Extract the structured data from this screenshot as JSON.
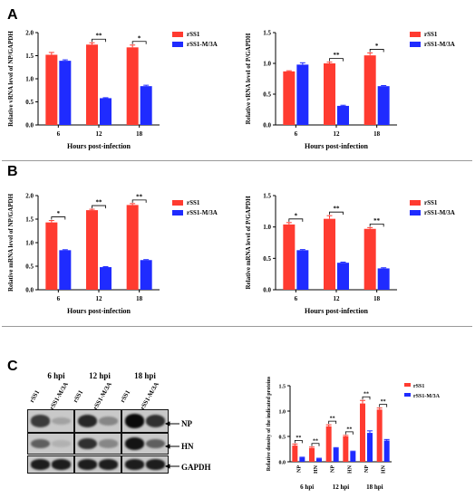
{
  "panels": {
    "A": "A",
    "B": "B",
    "C": "C"
  },
  "colors": {
    "rSS1": "#ff3b30",
    "rSS1-M/3A": "#1f2bff"
  },
  "chart_data": [
    {
      "id": "A-left",
      "type": "bar",
      "categories": [
        "6",
        "12",
        "18"
      ],
      "series": [
        {
          "name": "rSS1",
          "values": [
            1.52,
            1.74,
            1.68
          ],
          "errors": [
            0.05,
            0.04,
            0.05
          ]
        },
        {
          "name": "rSS1-M/3A",
          "values": [
            1.39,
            0.58,
            0.84
          ],
          "errors": [
            0.02,
            0.01,
            0.02
          ]
        }
      ],
      "sig": [
        null,
        "**",
        "*"
      ],
      "xlabel": "Hours post-infection",
      "ylabel": "Relative vRNA level of NP/GAPDH",
      "ylim": [
        0,
        2.0
      ],
      "yticks": [
        "0.0",
        "0.5",
        "1.0",
        "1.5",
        "2.0"
      ],
      "legend": "top-right"
    },
    {
      "id": "A-right",
      "type": "bar",
      "categories": [
        "6",
        "12",
        "18"
      ],
      "series": [
        {
          "name": "rSS1",
          "values": [
            0.87,
            1.0,
            1.13
          ],
          "errors": [
            0.01,
            0.02,
            0.04
          ]
        },
        {
          "name": "rSS1-M/3A",
          "values": [
            0.98,
            0.31,
            0.63
          ],
          "errors": [
            0.03,
            0.01,
            0.01
          ]
        }
      ],
      "sig": [
        null,
        "**",
        "*"
      ],
      "xlabel": "Hours post-infection",
      "ylabel": "Relative vRNA level of P/GAPDH",
      "ylim": [
        0,
        1.5
      ],
      "yticks": [
        "0.0",
        "0.5",
        "1.0",
        "1.5"
      ],
      "legend": "top-right"
    },
    {
      "id": "B-left",
      "type": "bar",
      "categories": [
        "6",
        "12",
        "18"
      ],
      "series": [
        {
          "name": "rSS1",
          "values": [
            1.43,
            1.69,
            1.8
          ],
          "errors": [
            0.04,
            0.02,
            0.03
          ]
        },
        {
          "name": "rSS1-M/3A",
          "values": [
            0.84,
            0.48,
            0.63
          ],
          "errors": [
            0.01,
            0.01,
            0.01
          ]
        }
      ],
      "sig": [
        "*",
        "**",
        "**"
      ],
      "xlabel": "Hours post-infection",
      "ylabel": "Relative mRNA level of NP/GAPDH",
      "ylim": [
        0,
        2.0
      ],
      "yticks": [
        "0.0",
        "0.5",
        "1.0",
        "1.5",
        "2.0"
      ],
      "legend": "top-right"
    },
    {
      "id": "B-right",
      "type": "bar",
      "categories": [
        "6",
        "12",
        "18"
      ],
      "series": [
        {
          "name": "rSS1",
          "values": [
            1.04,
            1.13,
            0.97
          ],
          "errors": [
            0.03,
            0.05,
            0.02
          ]
        },
        {
          "name": "rSS1-M/3A",
          "values": [
            0.63,
            0.43,
            0.34
          ],
          "errors": [
            0.01,
            0.01,
            0.01
          ]
        }
      ],
      "sig": [
        "*",
        "**",
        "**"
      ],
      "xlabel": "Hours post-infection",
      "ylabel": "Relative mRNA level of P/GAPDH",
      "ylim": [
        0,
        1.5
      ],
      "yticks": [
        "0.0",
        "0.5",
        "1.0",
        "1.5"
      ],
      "legend": "top-right"
    },
    {
      "id": "C-density",
      "type": "bar",
      "groups": [
        "6 hpi",
        "12 hpi",
        "18 hpi"
      ],
      "categories": [
        "NP",
        "HN",
        "NP",
        "HN",
        "NP",
        "HN"
      ],
      "series": [
        {
          "name": "rSS1",
          "values": [
            0.32,
            0.27,
            0.7,
            0.5,
            1.15,
            1.03
          ],
          "errors": [
            0.03,
            0.02,
            0.03,
            0.02,
            0.06,
            0.03
          ]
        },
        {
          "name": "rSS1-M/3A",
          "values": [
            0.08,
            0.06,
            0.27,
            0.2,
            0.57,
            0.42
          ],
          "errors": [
            0.01,
            0.01,
            0.01,
            0.01,
            0.04,
            0.02
          ]
        }
      ],
      "sig": [
        "**",
        "**",
        "**",
        "**",
        "**",
        "**"
      ],
      "ylabel": "Relative density of the indicated proteins",
      "ylim": [
        0,
        1.5
      ],
      "yticks": [
        "0.0",
        "0.5",
        "1.0",
        "1.5"
      ],
      "legend": "top-right"
    }
  ],
  "blot": {
    "timepoints": [
      "6 hpi",
      "12 hpi",
      "18 hpi"
    ],
    "lanes": [
      "rSS1",
      "rSS1-M/3A",
      "rSS1",
      "rSS1-M/3A",
      "rSS1",
      "rSS1-M/3A"
    ],
    "rows": [
      "NP",
      "HN",
      "GAPDH"
    ],
    "intensity": [
      [
        0.75,
        0.2,
        0.85,
        0.35,
        1.0,
        0.8
      ],
      [
        0.55,
        0.12,
        0.8,
        0.35,
        0.95,
        0.55
      ],
      [
        0.9,
        0.9,
        0.9,
        0.9,
        0.9,
        0.9
      ]
    ]
  }
}
